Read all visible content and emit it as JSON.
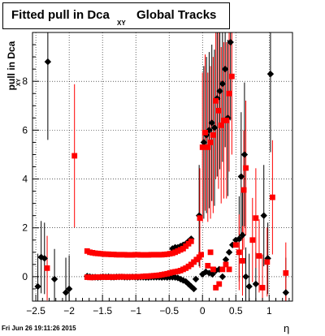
{
  "chart_data": {
    "type": "scatter",
    "title": "Fitted pull in Dca",
    "title_subscript": "XY",
    "title_suffix": "Global Tracks",
    "xlabel": "η",
    "ylabel": "pull in Dca",
    "ylabel_subscript": "XY",
    "xlim": [
      -2.55,
      1.35
    ],
    "ylim": [
      -1.0,
      10.0
    ],
    "xticks": [
      -2.5,
      -2,
      -1.5,
      -1,
      -0.5,
      0,
      0.5,
      1
    ],
    "xtick_labels": [
      "−2.5",
      "−2",
      "−1.5",
      "−1",
      "−0.5",
      "0",
      "0.5",
      "1"
    ],
    "yticks": [
      0,
      2,
      4,
      6,
      8
    ],
    "ytick_labels": [
      "0",
      "2",
      "4",
      "6",
      "8"
    ],
    "grid": true,
    "series": [
      {
        "color": "#000000",
        "marker": "diamond",
        "points": [
          [
            -2.47,
            -0.4
          ],
          [
            -2.42,
            0.8
          ],
          [
            -2.37,
            0.75
          ],
          [
            -2.32,
            8.8
          ],
          [
            -2.22,
            -0.1
          ],
          [
            -2.05,
            -0.65
          ],
          [
            -2.0,
            -0.5
          ],
          [
            -1.73,
            0.02
          ],
          [
            -1.69,
            0.0
          ],
          [
            -1.65,
            -0.02
          ],
          [
            -1.61,
            -0.02
          ],
          [
            -1.57,
            -0.03
          ],
          [
            -1.53,
            -0.02
          ],
          [
            -1.49,
            -0.01
          ],
          [
            -1.45,
            -0.01
          ],
          [
            -1.41,
            0.0
          ],
          [
            -1.37,
            -0.02
          ],
          [
            -1.33,
            -0.02
          ],
          [
            -1.29,
            -0.01
          ],
          [
            -1.25,
            -0.01
          ],
          [
            -1.21,
            -0.01
          ],
          [
            -1.17,
            -0.02
          ],
          [
            -1.13,
            -0.02
          ],
          [
            -1.09,
            -0.02
          ],
          [
            -1.05,
            -0.01
          ],
          [
            -1.01,
            -0.02
          ],
          [
            -0.97,
            -0.03
          ],
          [
            -0.93,
            -0.02
          ],
          [
            -0.89,
            -0.02
          ],
          [
            -0.85,
            -0.03
          ],
          [
            -0.81,
            -0.03
          ],
          [
            -0.77,
            -0.02
          ],
          [
            -0.73,
            -0.02
          ],
          [
            -0.69,
            -0.02
          ],
          [
            -0.65,
            -0.02
          ],
          [
            -0.61,
            -0.03
          ],
          [
            -0.57,
            -0.02
          ],
          [
            -0.53,
            -0.03
          ],
          [
            -0.49,
            -0.02
          ],
          [
            -0.45,
            -0.02
          ],
          [
            -0.41,
            -0.03
          ],
          [
            -0.37,
            -0.05
          ],
          [
            -0.33,
            -0.1
          ],
          [
            -0.29,
            -0.15
          ],
          [
            -0.25,
            -0.2
          ],
          [
            -0.21,
            -0.3
          ],
          [
            -0.17,
            -0.4
          ],
          [
            -0.13,
            -0.5
          ],
          [
            -0.45,
            1.15
          ],
          [
            -0.41,
            1.2
          ],
          [
            -0.37,
            1.2
          ],
          [
            -0.33,
            1.25
          ],
          [
            -0.29,
            1.3
          ],
          [
            -0.25,
            1.35
          ],
          [
            -0.21,
            1.45
          ],
          [
            -0.17,
            1.55
          ],
          [
            -0.05,
            2.5
          ],
          [
            -0.1,
            -0.1
          ],
          [
            0.0,
            0.1
          ],
          [
            0.05,
            0.2
          ],
          [
            0.1,
            0.15
          ],
          [
            0.15,
            0.1
          ],
          [
            0.2,
            0.25
          ],
          [
            0.25,
            0.3
          ],
          [
            0.3,
            0.0
          ],
          [
            0.02,
            5.5
          ],
          [
            0.06,
            5.8
          ],
          [
            0.1,
            6.0
          ],
          [
            0.14,
            6.3
          ],
          [
            0.18,
            6.1
          ],
          [
            0.22,
            7.3
          ],
          [
            0.26,
            7.6
          ],
          [
            0.3,
            7.9
          ],
          [
            0.34,
            8.5
          ],
          [
            0.38,
            6.5
          ],
          [
            0.42,
            9.6
          ],
          [
            0.35,
            0.7
          ],
          [
            0.4,
            1.0
          ],
          [
            0.45,
            1.3
          ],
          [
            0.5,
            1.5
          ],
          [
            0.55,
            1.55
          ],
          [
            0.6,
            1.7
          ],
          [
            0.65,
            0.0
          ],
          [
            0.58,
            4.1
          ],
          [
            0.63,
            5.0
          ],
          [
            0.7,
            -0.4
          ],
          [
            0.8,
            -0.3
          ],
          [
            0.92,
            2.5
          ],
          [
            0.98,
            0.75
          ],
          [
            1.02,
            8.3
          ],
          [
            1.25,
            -0.65
          ]
        ]
      },
      {
        "color": "#ff0000",
        "marker": "square",
        "points": [
          [
            -2.33,
            0.35
          ],
          [
            -1.92,
            4.95
          ],
          [
            -1.73,
            1.05
          ],
          [
            -1.69,
            1.0
          ],
          [
            -1.65,
            0.98
          ],
          [
            -1.61,
            0.96
          ],
          [
            -1.57,
            0.95
          ],
          [
            -1.53,
            0.94
          ],
          [
            -1.49,
            0.93
          ],
          [
            -1.45,
            0.92
          ],
          [
            -1.41,
            0.92
          ],
          [
            -1.37,
            0.91
          ],
          [
            -1.33,
            0.91
          ],
          [
            -1.29,
            0.9
          ],
          [
            -1.25,
            0.9
          ],
          [
            -1.21,
            0.9
          ],
          [
            -1.17,
            0.9
          ],
          [
            -1.13,
            0.89
          ],
          [
            -1.09,
            0.89
          ],
          [
            -1.05,
            0.89
          ],
          [
            -1.01,
            0.9
          ],
          [
            -0.97,
            0.9
          ],
          [
            -0.93,
            0.89
          ],
          [
            -0.89,
            0.89
          ],
          [
            -0.85,
            0.89
          ],
          [
            -0.81,
            0.89
          ],
          [
            -0.77,
            0.9
          ],
          [
            -0.73,
            0.9
          ],
          [
            -0.69,
            0.9
          ],
          [
            -0.65,
            0.9
          ],
          [
            -0.61,
            0.9
          ],
          [
            -0.57,
            0.91
          ],
          [
            -0.53,
            0.92
          ],
          [
            -0.49,
            0.94
          ],
          [
            -0.45,
            0.96
          ],
          [
            -0.41,
            1.0
          ],
          [
            -0.37,
            1.05
          ],
          [
            -0.33,
            1.1
          ],
          [
            -0.29,
            1.15
          ],
          [
            -0.25,
            1.25
          ],
          [
            -0.21,
            1.35
          ],
          [
            -0.17,
            1.45
          ],
          [
            -1.73,
            -0.02
          ],
          [
            -1.69,
            -0.03
          ],
          [
            -1.65,
            -0.03
          ],
          [
            -1.61,
            -0.02
          ],
          [
            -1.57,
            -0.02
          ],
          [
            -1.53,
            -0.02
          ],
          [
            -1.49,
            -0.01
          ],
          [
            -1.45,
            -0.02
          ],
          [
            -1.41,
            -0.02
          ],
          [
            -1.37,
            -0.01
          ],
          [
            -1.33,
            -0.02
          ],
          [
            -1.29,
            -0.01
          ],
          [
            -1.25,
            -0.01
          ],
          [
            -1.21,
            0.0
          ],
          [
            -1.17,
            -0.01
          ],
          [
            -1.13,
            -0.01
          ],
          [
            -1.09,
            -0.01
          ],
          [
            -1.05,
            -0.01
          ],
          [
            -1.01,
            -0.01
          ],
          [
            -0.97,
            0.0
          ],
          [
            -0.93,
            0.0
          ],
          [
            -0.89,
            0.01
          ],
          [
            -0.85,
            0.02
          ],
          [
            -0.81,
            0.02
          ],
          [
            -0.77,
            0.03
          ],
          [
            -0.73,
            0.04
          ],
          [
            -0.69,
            0.05
          ],
          [
            -0.65,
            0.06
          ],
          [
            -0.61,
            0.08
          ],
          [
            -0.57,
            0.1
          ],
          [
            -0.53,
            0.12
          ],
          [
            -0.49,
            0.15
          ],
          [
            -0.45,
            0.18
          ],
          [
            -0.41,
            0.2
          ],
          [
            -0.37,
            0.22
          ],
          [
            -0.33,
            0.25
          ],
          [
            -0.29,
            0.3
          ],
          [
            -0.25,
            0.35
          ],
          [
            -0.21,
            0.42
          ],
          [
            -0.17,
            0.5
          ],
          [
            -0.13,
            0.6
          ],
          [
            -0.09,
            0.7
          ],
          [
            -0.05,
            0.8
          ],
          [
            -0.02,
            0.9
          ],
          [
            -0.04,
            2.4
          ],
          [
            0.0,
            5.3
          ],
          [
            0.04,
            5.9
          ],
          [
            0.08,
            5.3
          ],
          [
            0.12,
            5.5
          ],
          [
            0.16,
            5.8
          ],
          [
            0.2,
            7.2
          ],
          [
            0.24,
            6.8
          ],
          [
            0.28,
            6.2
          ],
          [
            0.32,
            6.4
          ],
          [
            0.36,
            6.4
          ],
          [
            0.4,
            7.5
          ],
          [
            0.44,
            8.2
          ],
          [
            0.08,
            0.45
          ],
          [
            0.12,
            1.0
          ],
          [
            0.16,
            0.3
          ],
          [
            0.2,
            -0.45
          ],
          [
            0.25,
            -0.3
          ],
          [
            0.3,
            0.3
          ],
          [
            0.35,
            0.5
          ],
          [
            0.4,
            0.3
          ],
          [
            0.5,
            1.3
          ],
          [
            0.55,
            1.0
          ],
          [
            0.6,
            0.65
          ],
          [
            0.62,
            3.55
          ],
          [
            0.65,
            4.45
          ],
          [
            0.75,
            1.5
          ],
          [
            0.8,
            2.4
          ],
          [
            0.85,
            0.85
          ],
          [
            0.9,
            -0.45
          ],
          [
            0.97,
            0.6
          ],
          [
            1.05,
            3.25
          ],
          [
            1.25,
            0.15
          ]
        ]
      }
    ],
    "date_stamp": "Fri Jun 26 19:11:26 2015"
  }
}
